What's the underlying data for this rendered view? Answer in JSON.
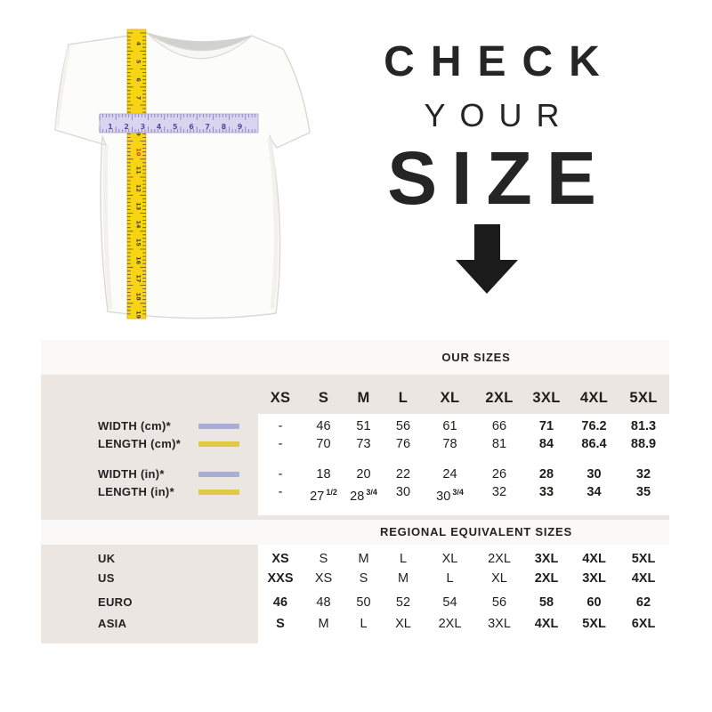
{
  "hero": {
    "line1": "CHECK",
    "line2": "YOUR",
    "line3": "SIZE",
    "arrow_icon": "down-arrow"
  },
  "tapes": {
    "width_tape_numbers": [
      "1",
      "2",
      "3",
      "4",
      "5",
      "6",
      "7",
      "8",
      "9"
    ],
    "length_tape_numbers": [
      "4",
      "5",
      "6",
      "7",
      "8",
      "9",
      "10",
      "11",
      "12",
      "13",
      "14",
      "15",
      "16",
      "17",
      "18",
      "19"
    ],
    "width_tape_color": "#d9d5ee",
    "length_tape_color": "#f7d414"
  },
  "colors": {
    "width_swatch": "#a9aed6",
    "length_swatch": "#e0ca45",
    "panel_beige": "#ece6e2",
    "band_offwhite": "#fbf9f7",
    "text": "#1e1e1c"
  },
  "chart_data": [
    {
      "type": "table",
      "title": "OUR SIZES",
      "columns": [
        "XS",
        "S",
        "M",
        "L",
        "XL",
        "2XL",
        "3XL",
        "4XL",
        "5XL"
      ],
      "row_labels": [
        "WIDTH (cm)*",
        "LENGTH (cm)*",
        "WIDTH (in)*",
        "LENGTH (in)*"
      ],
      "row_swatches": [
        "width",
        "length",
        "width",
        "length"
      ],
      "rows": [
        [
          "-",
          "46",
          "51",
          "56",
          "61",
          "66",
          "71",
          "76.2",
          "81.3"
        ],
        [
          "-",
          "70",
          "73",
          "76",
          "78",
          "81",
          "84",
          "86.4",
          "88.9"
        ],
        [
          "-",
          "18",
          "20",
          "22",
          "24",
          "26",
          "28",
          "30",
          "32"
        ],
        [
          "-",
          "27 1/2",
          "28 3/4",
          "30",
          "30 3/4",
          "32",
          "33",
          "34",
          "35"
        ]
      ],
      "bold_columns": [
        6,
        7,
        8
      ]
    },
    {
      "type": "table",
      "title": "REGIONAL EQUIVALENT SIZES",
      "row_labels": [
        "UK",
        "US",
        "EURO",
        "ASIA"
      ],
      "rows": [
        [
          "XS",
          "S",
          "M",
          "L",
          "XL",
          "2XL",
          "3XL",
          "4XL",
          "5XL"
        ],
        [
          "XXS",
          "XS",
          "S",
          "M",
          "L",
          "XL",
          "2XL",
          "3XL",
          "4XL"
        ],
        [
          "46",
          "48",
          "50",
          "52",
          "54",
          "56",
          "58",
          "60",
          "62"
        ],
        [
          "S",
          "M",
          "L",
          "XL",
          "2XL",
          "3XL",
          "4XL",
          "5XL",
          "6XL"
        ]
      ],
      "bold_columns": [
        0,
        6,
        7,
        8
      ]
    }
  ]
}
